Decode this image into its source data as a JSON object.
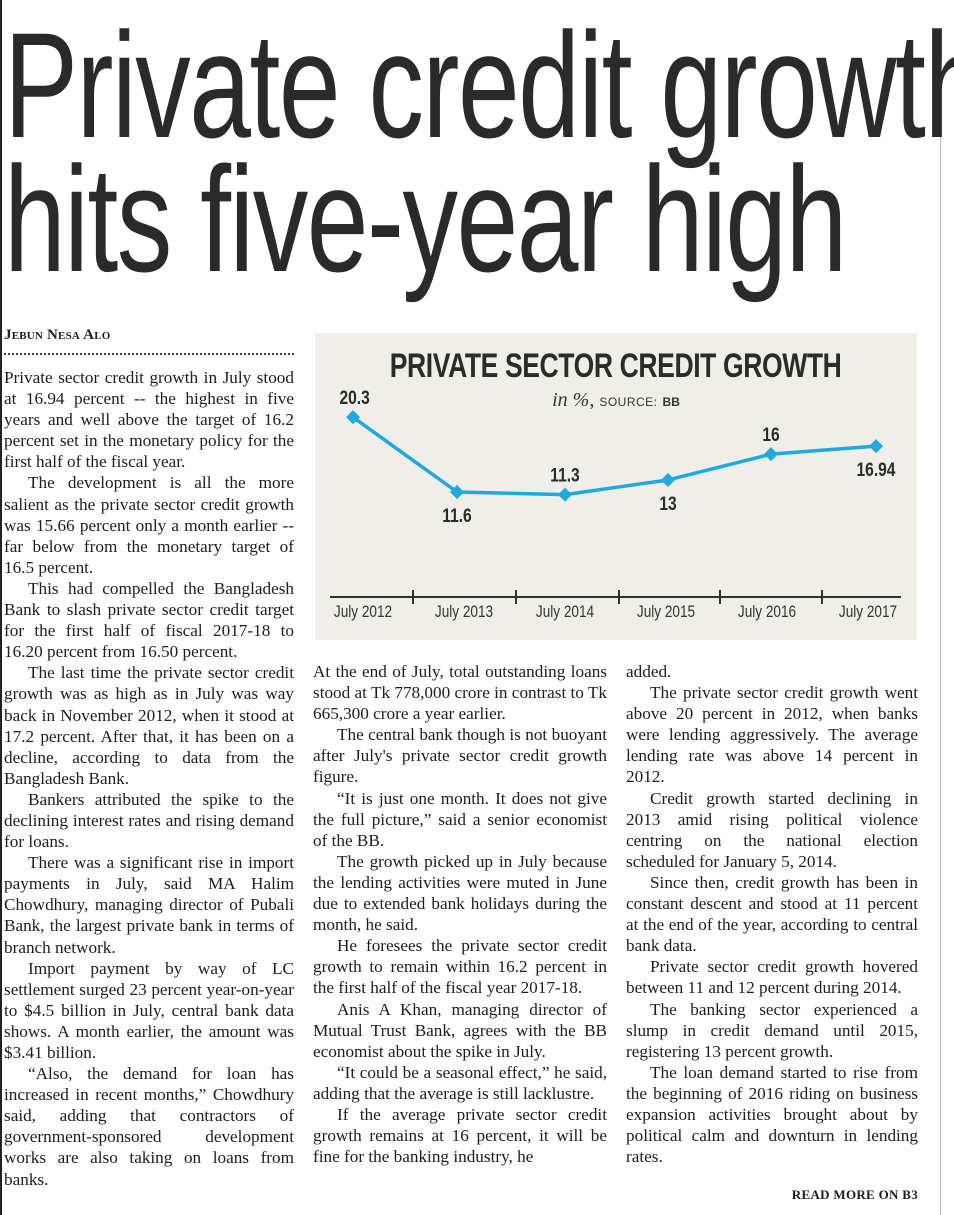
{
  "headline": {
    "line1": "Private credit growth",
    "line2": "hits five-year high"
  },
  "byline": "Jebun Nesa Alo",
  "columns": {
    "col1": [
      "Private sector credit growth in July stood at 16.94 percent -- the highest in five years and well above the target of 16.2 percent set in the monetary policy for the first half of the fiscal year.",
      "The development is all the more salient as the private sector credit growth was 15.66 percent only a month earlier -- far below from the monetary target of 16.5 percent.",
      "This had compelled the Bangladesh Bank to slash private sector credit target for the first half of fiscal 2017-18 to 16.20 percent from 16.50 percent.",
      "The last time the private sector credit growth was as high as in July was way back in November 2012, when it stood at 17.2 percent. After that, it has been on a decline, according to data from the Bangladesh Bank.",
      "Bankers attributed the spike to the declining interest rates and rising demand for loans.",
      "There was a significant rise in import payments in July, said MA Halim Chowdhury, managing director of Pubali Bank, the largest private bank in terms of branch network.",
      "Import payment by way of LC settlement surged 23 percent year-on-year to $4.5 billion in July, central bank data shows. A month earlier, the amount was $3.41 billion.",
      "“Also, the demand for loan has increased in recent months,” Chowdhury said, adding that contractors of government-sponsored development works are also taking on loans from banks."
    ],
    "col2": [
      "At the end of July, total outstanding loans stood at Tk 778,000 crore in contrast to Tk 665,300 crore a year earlier.",
      "The central bank though is not buoyant after July's private sector credit growth figure.",
      "“It is just one month. It does not give the full picture,” said a senior economist of the BB.",
      "The growth picked up in July because the lending activities were muted in June due to extended bank holidays during the month, he said.",
      "He foresees the private sector credit growth to remain within 16.2 percent in the first half of the fiscal year 2017-18.",
      "Anis A Khan, managing director of Mutual Trust Bank, agrees with the BB economist about the spike in July.",
      "“It could be a seasonal effect,” he said, adding that the average is still lacklustre.",
      "If the average private sector credit growth remains at 16 percent, it will be fine for the banking industry, he"
    ],
    "col3": [
      "added.",
      "The private sector credit growth went above 20 percent in 2012, when banks were lending aggressively. The average lending rate was above 14 percent in 2012.",
      "Credit growth started declining in 2013 amid rising political violence centring on the national election scheduled for January 5, 2014.",
      "Since then, credit growth has been in constant descent and stood at 11 percent at the end of the year, according to central bank data.",
      "Private sector credit growth hovered between 11 and 12 percent during 2014.",
      "The banking sector experienced a slump in credit demand until 2015, registering 13 percent growth.",
      "The loan demand started to rise from the beginning of 2016 riding on business expansion activities brought about by political calm and downturn in lending rates."
    ]
  },
  "read_more": "READ MORE ON B3",
  "chart_data": {
    "type": "line",
    "title": "PRIVATE SECTOR CREDIT GROWTH",
    "subtitle_unit": "in %,",
    "subtitle_source_label": "SOURCE:",
    "subtitle_source": "BB",
    "categories": [
      "July 2012",
      "July 2013",
      "July 2014",
      "July 2015",
      "July 2016",
      "July 2017"
    ],
    "values": [
      20.3,
      11.6,
      11.3,
      13,
      16,
      16.94
    ],
    "data_labels": [
      "20.3",
      "11.6",
      "11.3",
      "13",
      "16",
      "16.94"
    ],
    "grid": false,
    "legend": "none",
    "line_color": "#1ea9e1",
    "background": "#efeee8",
    "marker": "diamond"
  }
}
